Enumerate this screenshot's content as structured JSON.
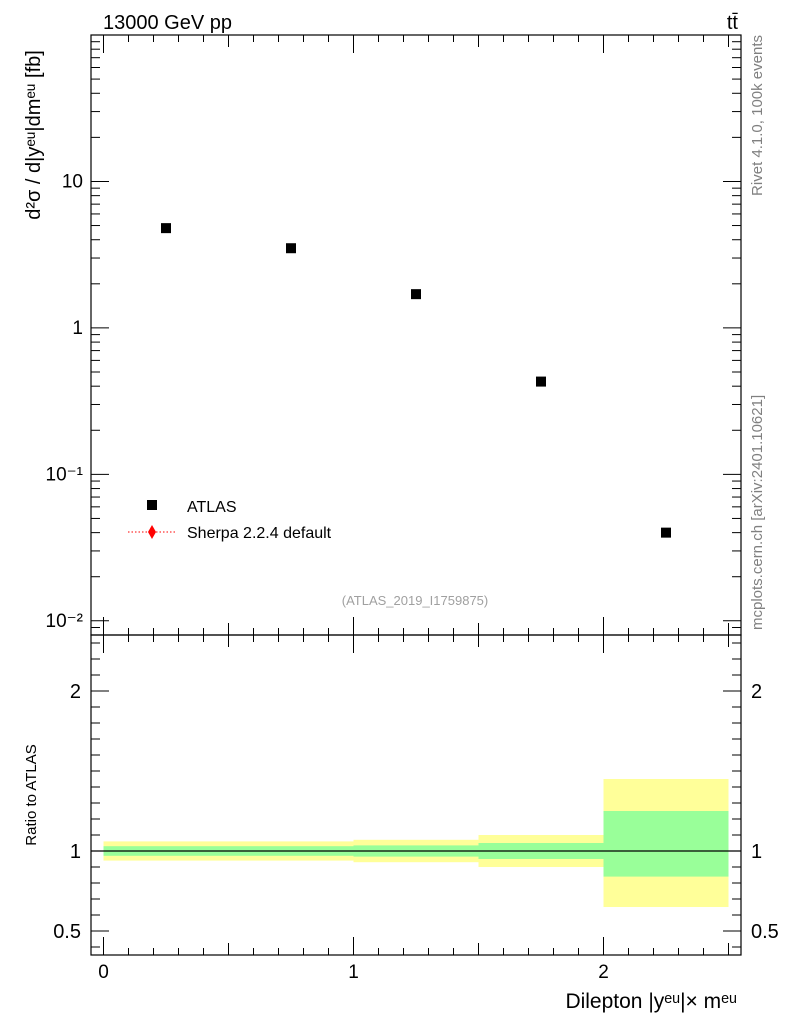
{
  "header": {
    "energy_label": "13000 GeV pp",
    "process_label": "tt̄"
  },
  "side_labels": {
    "rivet": "Rivet 4.1.0,  100k events",
    "source": "mcplots.cern.ch [arXiv:2401.10621]"
  },
  "watermark": "(ATLAS_2019_I1759875)",
  "legend": [
    {
      "label": "ATLAS",
      "marker": "square",
      "color": "#000000"
    },
    {
      "label": "Sherpa 2.2.4 default",
      "marker": "diamond-dotted-line",
      "color": "#ff0000"
    }
  ],
  "colors": {
    "data": "#000000",
    "mc": "#ff0000",
    "band_stat": "#99ff99",
    "band_total": "#ffff99",
    "axis": "#000000"
  },
  "chart_data": [
    {
      "type": "scatter",
      "panel": "main",
      "ylabel": "d²σ / d|yᵉᵘ|dmᵉᵘ [fb]",
      "yscale": "log",
      "ylim": [
        0.008,
        100
      ],
      "xlim": [
        -0.05,
        2.55
      ],
      "y_ticks": [
        {
          "value": 10,
          "label": "10"
        },
        {
          "value": 1,
          "label": "1"
        },
        {
          "value": 0.1,
          "label": "10⁻¹"
        },
        {
          "value": 0.01,
          "label": "10⁻²"
        }
      ],
      "series": [
        {
          "name": "ATLAS",
          "x": [
            0.25,
            0.75,
            1.25,
            1.75,
            2.25
          ],
          "y": [
            4.8,
            3.5,
            1.7,
            0.43,
            0.04
          ]
        }
      ]
    },
    {
      "type": "area",
      "panel": "ratio",
      "ylabel": "Ratio to ATLAS",
      "xlabel": "Dilepton |yᵉᵘ|× mᵉᵘ",
      "ylim": [
        0.35,
        2.35
      ],
      "xlim": [
        -0.05,
        2.55
      ],
      "x_ticks": [
        {
          "value": 0,
          "label": "0"
        },
        {
          "value": 1,
          "label": "1"
        },
        {
          "value": 2,
          "label": "2"
        }
      ],
      "y_ticks": [
        {
          "value": 2,
          "label": "2"
        },
        {
          "value": 1,
          "label": "1"
        },
        {
          "value": 0.5,
          "label": "0.5"
        }
      ],
      "reference_line": 1,
      "bins": [
        {
          "x_low": 0.0,
          "x_high": 1.0,
          "total_low": 0.94,
          "total_high": 1.06,
          "stat_low": 0.97,
          "stat_high": 1.03
        },
        {
          "x_low": 1.0,
          "x_high": 1.5,
          "total_low": 0.93,
          "total_high": 1.07,
          "stat_low": 0.965,
          "stat_high": 1.035
        },
        {
          "x_low": 1.5,
          "x_high": 2.0,
          "total_low": 0.9,
          "total_high": 1.1,
          "stat_low": 0.95,
          "stat_high": 1.05
        },
        {
          "x_low": 2.0,
          "x_high": 2.5,
          "total_low": 0.65,
          "total_high": 1.45,
          "stat_low": 0.84,
          "stat_high": 1.25
        }
      ]
    }
  ]
}
